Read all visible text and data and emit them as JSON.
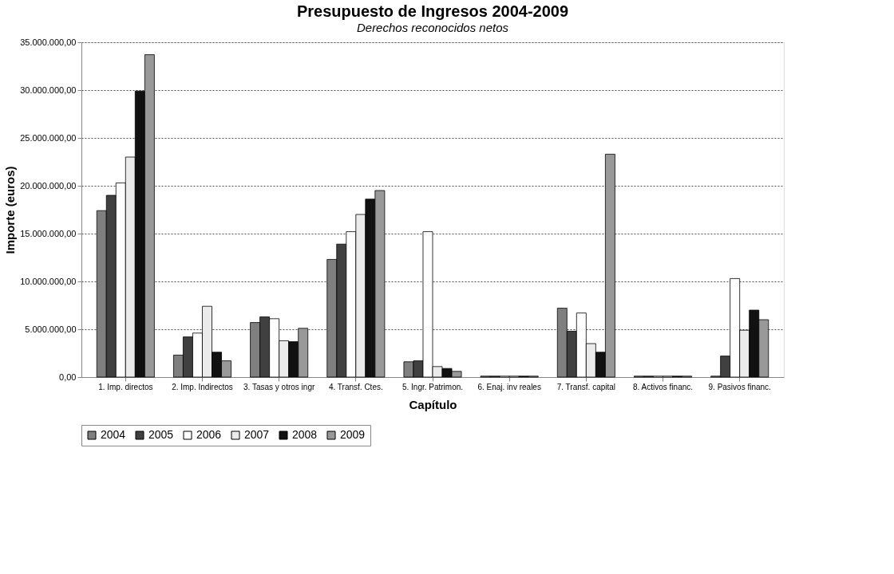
{
  "chart_data": {
    "type": "bar",
    "title": "Presupuesto de Ingresos 2004-2009",
    "subtitle": "Derechos reconocidos netos",
    "xlabel": "Capítulo",
    "ylabel": "Importe (euros)",
    "categories": [
      "1. Imp. directos",
      "2. Imp. Indirectos",
      "3. Tasas y otros ingr",
      "4. Transf. Ctes.",
      "5. Ingr. Patrimon.",
      "6. Enaj. inv reales",
      "7. Transf. capital",
      "8. Activos financ.",
      "9. Pasivos financ."
    ],
    "series": [
      {
        "name": "2004",
        "color": "#7f7f7f",
        "values": [
          17400000,
          2300000,
          5700000,
          12300000,
          1600000,
          100000,
          7200000,
          100000,
          100000
        ]
      },
      {
        "name": "2005",
        "color": "#404040",
        "values": [
          19000000,
          4200000,
          6300000,
          13900000,
          1700000,
          100000,
          4800000,
          100000,
          2200000
        ]
      },
      {
        "name": "2006",
        "color": "#ffffff",
        "values": [
          20300000,
          4600000,
          6100000,
          15200000,
          15200000,
          100000,
          6700000,
          100000,
          10300000
        ]
      },
      {
        "name": "2007",
        "color": "#ebebeb",
        "values": [
          23000000,
          7400000,
          3800000,
          17000000,
          1100000,
          100000,
          3500000,
          100000,
          4900000
        ]
      },
      {
        "name": "2008",
        "color": "#111111",
        "values": [
          29900000,
          2600000,
          3700000,
          18600000,
          900000,
          100000,
          2600000,
          100000,
          7000000
        ]
      },
      {
        "name": "2009",
        "color": "#999999",
        "values": [
          33700000,
          1700000,
          5100000,
          19500000,
          600000,
          100000,
          23300000,
          100000,
          6000000
        ]
      }
    ],
    "ylim": [
      0,
      35000000
    ],
    "yticks": [
      {
        "value": 0,
        "label": "0,00"
      },
      {
        "value": 5000000,
        "label": "5.000.000,00"
      },
      {
        "value": 10000000,
        "label": "10.000.000,00"
      },
      {
        "value": 15000000,
        "label": "15.000.000,00"
      },
      {
        "value": 20000000,
        "label": "20.000.000,00"
      },
      {
        "value": 25000000,
        "label": "25.000.000,00"
      },
      {
        "value": 30000000,
        "label": "30.000.000,00"
      },
      {
        "value": 35000000,
        "label": "35.000.000,00"
      }
    ],
    "grid": "y",
    "legend": "bottom"
  }
}
